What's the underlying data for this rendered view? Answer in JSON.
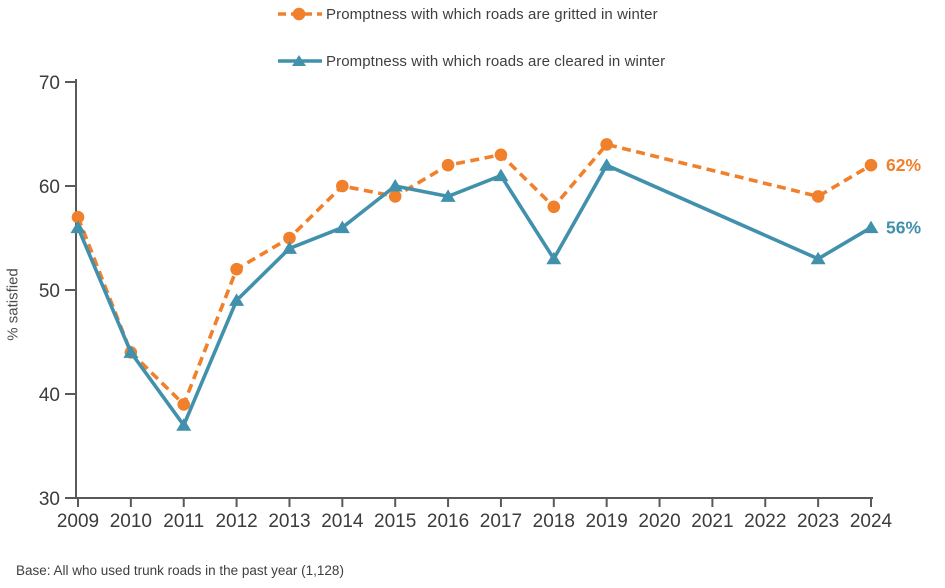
{
  "legend": {
    "items": [
      {
        "label": "Promptness with which roads are gritted in winter",
        "marker": "circle",
        "line_style": "dashed"
      },
      {
        "label": "Promptness with which roads are cleared in winter",
        "marker": "triangle",
        "line_style": "solid"
      }
    ]
  },
  "footnote": "Base: All who used trunk roads in the past year (1,128)",
  "colors": {
    "gritted_orange": "#F0802C",
    "cleared_teal": "#4191AC",
    "axis_gray": "#595959",
    "text_dark": "#3c3c3c"
  },
  "chart_data": {
    "type": "line",
    "title": "",
    "categories": [
      "2009",
      "2010",
      "2011",
      "2012",
      "2013",
      "2014",
      "2015",
      "2016",
      "2017",
      "2018",
      "2019",
      "2020",
      "2021",
      "2022",
      "2023",
      "2024"
    ],
    "series": [
      {
        "name": "Promptness with which roads are gritted in winter",
        "color": "#F0802C",
        "line_style": "dashed",
        "marker": "circle",
        "values": [
          57,
          44,
          39,
          52,
          55,
          60,
          59,
          62,
          63,
          58,
          64,
          null,
          null,
          null,
          59,
          62
        ],
        "end_label": "62%"
      },
      {
        "name": "Promptness with which roads are cleared in winter",
        "color": "#4191AC",
        "line_style": "solid",
        "marker": "triangle",
        "values": [
          56,
          44,
          37,
          49,
          54,
          56,
          60,
          59,
          61,
          53,
          62,
          null,
          null,
          null,
          53,
          56
        ],
        "end_label": "56%"
      }
    ],
    "xlabel": "",
    "ylabel": "% satisfied",
    "ylim": [
      30,
      70
    ],
    "yticks": [
      30,
      40,
      50,
      60,
      70
    ],
    "grid": false,
    "legend_position": "top"
  }
}
